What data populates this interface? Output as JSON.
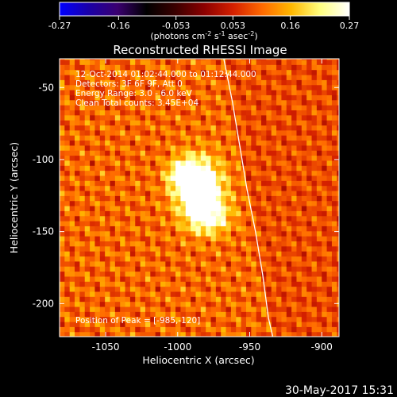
{
  "colorbar": {
    "ticks": [
      "-0.27",
      "-0.16",
      "-0.053",
      "0.053",
      "0.16",
      "0.27"
    ],
    "tick_values": [
      -0.27,
      -0.16,
      -0.053,
      0.053,
      0.16,
      0.27
    ],
    "range": [
      -0.27,
      0.27
    ],
    "units_main": "(photons cm",
    "units_exp1": "-2",
    "units_mid": " s",
    "units_exp2": "-1",
    "units_end": " asec",
    "units_exp3": "-2",
    "units_close": ")",
    "colormap": [
      "#0000ff",
      "#1a00a8",
      "#3a006f",
      "#000000",
      "#3a0000",
      "#8c0000",
      "#d42000",
      "#ff6a00",
      "#ffb800",
      "#ffff80",
      "#ffffff"
    ]
  },
  "title": "Reconstructed RHESSI Image",
  "info": [
    "12-Oct-2014 01:02:44.000 to 01:12:44.000",
    "Detectors: 3F 6F 9F, Att 0",
    "Energy Range: 3.0 - 6.0 keV",
    "Clean    Total counts: 3.45E+04"
  ],
  "peak_label": "Position of Peak = [-985,-120]",
  "footer_date": "30-May-2017 15:31",
  "chart_data": {
    "type": "heatmap",
    "title": "Reconstructed RHESSI Image",
    "xlabel": "Heliocentric X (arcsec)",
    "ylabel": "Heliocentric Y (arcsec)",
    "xlim": [
      -1082,
      -888
    ],
    "ylim": [
      -223,
      -30
    ],
    "x_ticks": [
      -1050,
      -1000,
      -950,
      -900
    ],
    "x_tick_labels": [
      "-1050",
      "-1000",
      "-950",
      "-900"
    ],
    "y_ticks": [
      -50,
      -100,
      -150,
      -200
    ],
    "y_tick_labels": [
      "-50",
      "-100",
      "-150",
      "-200"
    ],
    "peak": {
      "x": -985,
      "y": -120
    },
    "sources": [
      {
        "x": -985,
        "y": -120,
        "intensity": 0.27,
        "sx": 11,
        "sy": 14
      },
      {
        "x": -996,
        "y": -110,
        "intensity": 0.16,
        "sx": 7,
        "sy": 7
      },
      {
        "x": -978,
        "y": -140,
        "intensity": 0.14,
        "sx": 10,
        "sy": 8
      }
    ],
    "limb": [
      [
        -968,
        -30
      ],
      [
        -962,
        -60
      ],
      [
        -957,
        -90
      ],
      [
        -952,
        -120
      ],
      [
        -946,
        -150
      ],
      [
        -941,
        -180
      ],
      [
        -937,
        -210
      ],
      [
        -934,
        -223
      ]
    ]
  }
}
